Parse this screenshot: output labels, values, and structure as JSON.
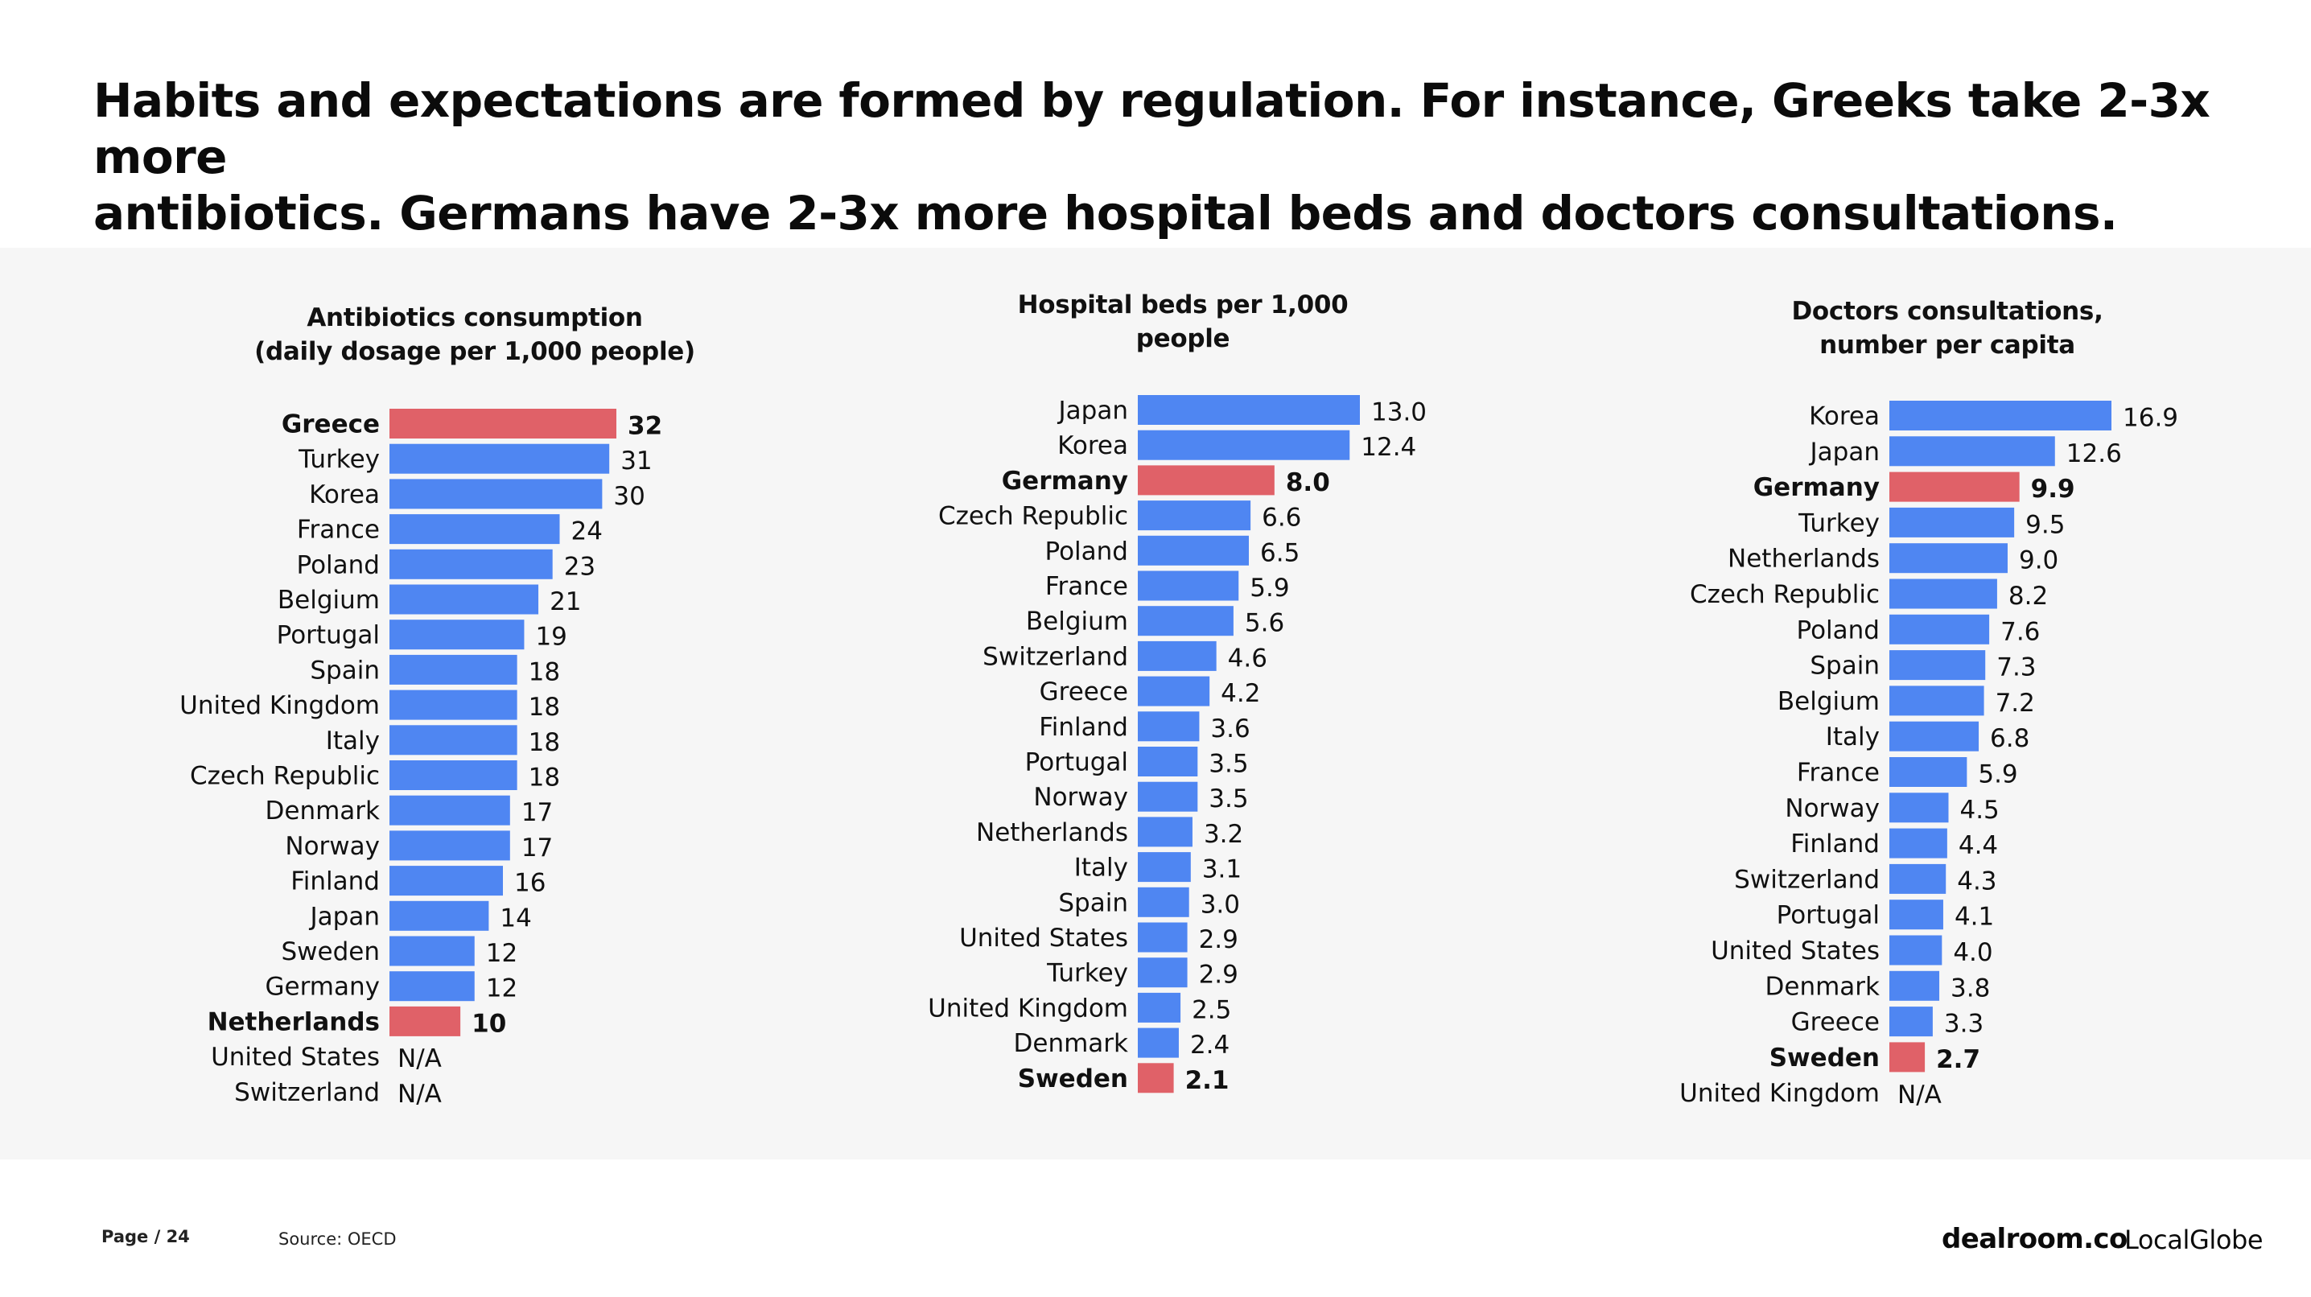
{
  "slide": {
    "title_line1": "Habits and expectations are formed by regulation. For instance, Greeks take 2-3x more",
    "title_line2": "antibiotics. Germans have 2-3x more hospital beds and doctors consultations."
  },
  "colors": {
    "normal": "#4f86f2",
    "highlight": "#e06168",
    "panel": "#f6f6f6"
  },
  "chart_data": [
    {
      "type": "bar",
      "orientation": "horizontal",
      "title": [
        "Antibiotics consumption",
        "(daily dosage per 1,000 people)"
      ],
      "categories": [
        "Greece",
        "Turkey",
        "Korea",
        "France",
        "Poland",
        "Belgium",
        "Portugal",
        "Spain",
        "United Kingdom",
        "Italy",
        "Czech Republic",
        "Denmark",
        "Norway",
        "Finland",
        "Japan",
        "Sweden",
        "Germany",
        "Netherlands",
        "United States",
        "Switzerland"
      ],
      "values": [
        32,
        31,
        30,
        24,
        23,
        21,
        19,
        18,
        18,
        18,
        18,
        17,
        17,
        16,
        14,
        12,
        12,
        10,
        null,
        null
      ],
      "labels": [
        "32",
        "31",
        "30",
        "24",
        "23",
        "21",
        "19",
        "18",
        "18",
        "18",
        "18",
        "17",
        "17",
        "16",
        "14",
        "12",
        "12",
        "10",
        "N/A",
        "N/A"
      ],
      "highlighted": [
        "Greece",
        "Netherlands"
      ],
      "xlim": [
        0,
        32
      ]
    },
    {
      "type": "bar",
      "orientation": "horizontal",
      "title": [
        "Hospital beds per 1,000",
        "people"
      ],
      "categories": [
        "Japan",
        "Korea",
        "Germany",
        "Czech Republic",
        "Poland",
        "France",
        "Belgium",
        "Switzerland",
        "Greece",
        "Finland",
        "Portugal",
        "Norway",
        "Netherlands",
        "Italy",
        "Spain",
        "United States",
        "Turkey",
        "United Kingdom",
        "Denmark",
        "Sweden"
      ],
      "values": [
        13.0,
        12.4,
        8.0,
        6.6,
        6.5,
        5.9,
        5.6,
        4.6,
        4.2,
        3.6,
        3.5,
        3.5,
        3.2,
        3.1,
        3.0,
        2.9,
        2.9,
        2.5,
        2.4,
        2.1
      ],
      "labels": [
        "13.0",
        "12.4",
        "8.0",
        "6.6",
        "6.5",
        "5.9",
        "5.6",
        "4.6",
        "4.2",
        "3.6",
        "3.5",
        "3.5",
        "3.2",
        "3.1",
        "3.0",
        "2.9",
        "2.9",
        "2.5",
        "2.4",
        "2.1"
      ],
      "highlighted": [
        "Germany",
        "Sweden"
      ],
      "xlim": [
        0,
        13.0
      ]
    },
    {
      "type": "bar",
      "orientation": "horizontal",
      "title": [
        "Doctors consultations,",
        "number per capita"
      ],
      "categories": [
        "Korea",
        "Japan",
        "Germany",
        "Turkey",
        "Netherlands",
        "Czech Republic",
        "Poland",
        "Spain",
        "Belgium",
        "Italy",
        "France",
        "Norway",
        "Finland",
        "Switzerland",
        "Portugal",
        "United States",
        "Denmark",
        "Greece",
        "Sweden",
        "United Kingdom"
      ],
      "values": [
        16.9,
        12.6,
        9.9,
        9.5,
        9.0,
        8.2,
        7.6,
        7.3,
        7.2,
        6.8,
        5.9,
        4.5,
        4.4,
        4.3,
        4.1,
        4.0,
        3.8,
        3.3,
        2.7,
        null
      ],
      "labels": [
        "16.9",
        "12.6",
        "9.9",
        "9.5",
        "9.0",
        "8.2",
        "7.6",
        "7.3",
        "7.2",
        "6.8",
        "5.9",
        "4.5",
        "4.4",
        "4.3",
        "4.1",
        "4.0",
        "3.8",
        "3.3",
        "2.7",
        "N/A"
      ],
      "highlighted": [
        "Germany",
        "Sweden"
      ],
      "xlim": [
        0,
        16.9
      ]
    }
  ],
  "footer": {
    "page": "Page / 24",
    "source": "Source: OECD"
  },
  "logos": {
    "dealroom": "dealroom.co",
    "localglobe": "LocalGlobe"
  }
}
